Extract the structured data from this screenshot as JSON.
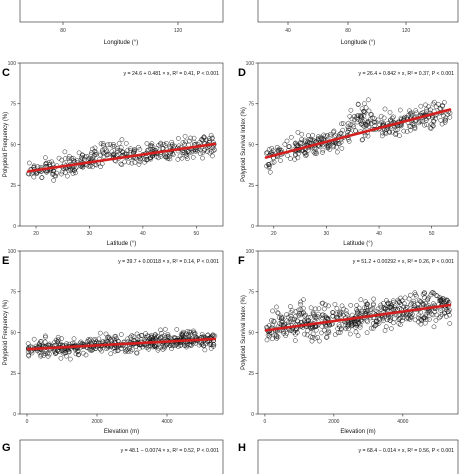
{
  "top_row": {
    "panel1": {
      "xticks": [
        "80",
        "120"
      ],
      "xlabel": "Longitude (°)"
    },
    "panel2": {
      "xticks": [
        "40",
        "80",
        "120"
      ],
      "xlabel": "Longitude (°)"
    }
  },
  "colors": {
    "points": "#111111",
    "fit": "#d51f1f",
    "frame": "#222222"
  },
  "chart_data": [
    {
      "type": "scatter",
      "letter": "C",
      "xlabel": "Latitude (°)",
      "ylabel": "Polyploid Frequency (%)",
      "xlim": [
        17,
        55
      ],
      "ylim": [
        0,
        100
      ],
      "xticks": [
        20,
        30,
        40,
        50
      ],
      "yticks": [
        0,
        25,
        50,
        75,
        100
      ],
      "equation": "y = 24.6 + 0.481 × x, R² = 0.41, P < 0.001",
      "fit": {
        "intercept": 24.6,
        "slope": 0.481
      },
      "gen": {
        "n": 380,
        "noise": 4.5,
        "spread": 6,
        "bump": {
          "from": 29,
          "to": 38,
          "amp": 7
        }
      }
    },
    {
      "type": "scatter",
      "letter": "D",
      "xlabel": "Latitude (°)",
      "ylabel": "Polyploid Survival Index (%)",
      "xlim": [
        17,
        55
      ],
      "ylim": [
        0,
        100
      ],
      "xticks": [
        20,
        30,
        40,
        50
      ],
      "yticks": [
        0,
        25,
        50,
        75,
        100
      ],
      "equation": "y = 26.4 + 0.842 × x, R² = 0.37, P < 0.001",
      "fit": {
        "intercept": 26.4,
        "slope": 0.842
      },
      "gen": {
        "n": 420,
        "noise": 5,
        "spread": 7,
        "bump": {
          "from": 32,
          "to": 41,
          "amp": 13
        }
      }
    },
    {
      "type": "scatter",
      "letter": "E",
      "xlabel": "Elevation (m)",
      "ylabel": "Polyploid Frequency (%)",
      "xlim": [
        -200,
        5600
      ],
      "ylim": [
        0,
        100
      ],
      "xticks": [
        0,
        2000,
        4000
      ],
      "yticks": [
        0,
        25,
        50,
        75,
        100
      ],
      "equation": "y = 39.7 + 0.00118 × x, R² = 0.14, P < 0.001",
      "fit": {
        "intercept": 39.7,
        "slope": 0.00118
      },
      "gen": {
        "n": 520,
        "noise": 4,
        "spread": 5,
        "bump": null
      }
    },
    {
      "type": "scatter",
      "letter": "F",
      "xlabel": "Elevation (m)",
      "ylabel": "Polyploid Survival Index (%)",
      "xlim": [
        -200,
        5600
      ],
      "ylim": [
        0,
        100
      ],
      "xticks": [
        0,
        2000,
        4000
      ],
      "yticks": [
        0,
        25,
        50,
        75,
        100
      ],
      "equation": "y = 51.2 + 0.00292 × x, R² = 0.26, P < 0.001",
      "fit": {
        "intercept": 51.2,
        "slope": 0.00292
      },
      "gen": {
        "n": 560,
        "noise": 7,
        "spread": 8,
        "bump": {
          "from": 0,
          "to": 1500,
          "amp": 6
        }
      }
    },
    {
      "type": "scatter",
      "letter": "G",
      "equation": "y = 48.1 − 0.0074 × x, R² = 0.52, P < 0.001"
    },
    {
      "type": "scatter",
      "letter": "H",
      "equation": "y = 68.4 − 0.014 × x, R² = 0.56, P < 0.001"
    }
  ]
}
